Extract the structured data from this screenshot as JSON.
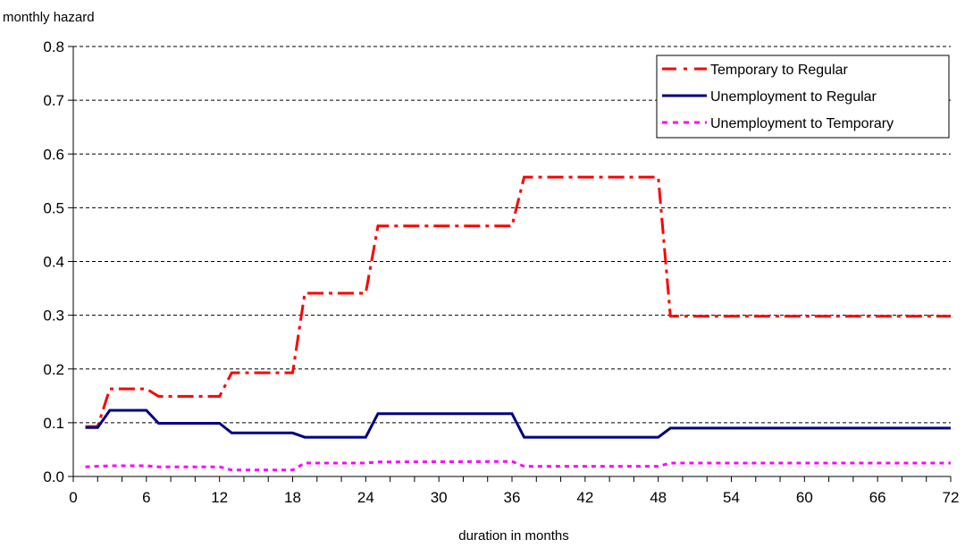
{
  "chart_data": {
    "type": "line",
    "title": "",
    "ylabel": "monthly hazard",
    "xlabel": "duration in months",
    "xlim": [
      0,
      72
    ],
    "ylim": [
      0,
      0.8
    ],
    "xticks": [
      0,
      6,
      12,
      18,
      24,
      30,
      36,
      42,
      48,
      54,
      60,
      66,
      72
    ],
    "yticks": [
      0.0,
      0.1,
      0.2,
      0.3,
      0.4,
      0.5,
      0.6,
      0.7,
      0.8
    ],
    "ytick_labels": [
      "0.0",
      "0.1",
      "0.2",
      "0.3",
      "0.4",
      "0.5",
      "0.6",
      "0.7",
      "0.8"
    ],
    "grid": "horizontal dashed",
    "legend_position": "top-right",
    "series": [
      {
        "name": "Temporary to Regular",
        "color": "#ff0000",
        "style": "dash-dot",
        "points": [
          [
            1,
            0.093
          ],
          [
            2,
            0.093
          ],
          [
            3,
            0.163
          ],
          [
            6,
            0.163
          ],
          [
            7,
            0.149
          ],
          [
            12,
            0.149
          ],
          [
            13,
            0.193
          ],
          [
            18,
            0.193
          ],
          [
            19,
            0.341
          ],
          [
            24,
            0.341
          ],
          [
            25,
            0.466
          ],
          [
            36,
            0.466
          ],
          [
            37,
            0.557
          ],
          [
            48,
            0.557
          ],
          [
            49,
            0.298
          ],
          [
            72,
            0.298
          ]
        ]
      },
      {
        "name": "Unemployment to Regular",
        "color": "#000080",
        "style": "solid",
        "points": [
          [
            1,
            0.091
          ],
          [
            2,
            0.091
          ],
          [
            3,
            0.123
          ],
          [
            6,
            0.123
          ],
          [
            7,
            0.099
          ],
          [
            12,
            0.099
          ],
          [
            13,
            0.081
          ],
          [
            18,
            0.081
          ],
          [
            19,
            0.073
          ],
          [
            24,
            0.073
          ],
          [
            25,
            0.117
          ],
          [
            36,
            0.117
          ],
          [
            37,
            0.073
          ],
          [
            48,
            0.073
          ],
          [
            49,
            0.09
          ],
          [
            72,
            0.09
          ]
        ]
      },
      {
        "name": "Unemployment to Temporary",
        "color": "#ff00ff",
        "style": "dotted",
        "points": [
          [
            1,
            0.018
          ],
          [
            3,
            0.02
          ],
          [
            6,
            0.02
          ],
          [
            7,
            0.018
          ],
          [
            12,
            0.018
          ],
          [
            13,
            0.012
          ],
          [
            18,
            0.012
          ],
          [
            19,
            0.025
          ],
          [
            24,
            0.025
          ],
          [
            25,
            0.027
          ],
          [
            36,
            0.028
          ],
          [
            37,
            0.019
          ],
          [
            48,
            0.019
          ],
          [
            49,
            0.025
          ],
          [
            72,
            0.025
          ]
        ]
      }
    ]
  }
}
